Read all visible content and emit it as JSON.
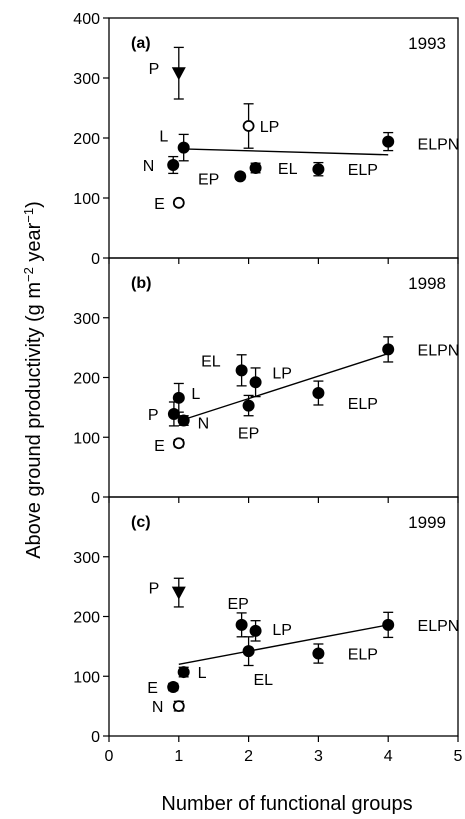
{
  "chart_data": {
    "type": "scatter",
    "xlabel": "Number of functional groups",
    "ylabel": "Above ground productivity (g m−2 year−1)",
    "xlim": [
      0,
      5
    ],
    "ylim": [
      0,
      400
    ],
    "x_ticks": [
      "0",
      "1",
      "2",
      "3",
      "4",
      "5"
    ],
    "y_ticks_top": [
      "0",
      "100",
      "200",
      "300",
      "400"
    ],
    "y_ticks_other": [
      "0",
      "100",
      "200",
      "300"
    ],
    "panels": [
      {
        "tag": "(a)",
        "year": "1993",
        "trend": [
          [
            1,
            182
          ],
          [
            4,
            172
          ]
        ],
        "points": [
          {
            "label": "P",
            "x": 1.0,
            "y": 308,
            "err": 43,
            "marker": "triangle",
            "lx": -0.28,
            "ly": 5
          },
          {
            "label": "LP",
            "x": 2.0,
            "y": 220,
            "err": 37,
            "marker": "open",
            "lx": 0.16,
            "ly": 0
          },
          {
            "label": "ELPN",
            "x": 4.0,
            "y": 194,
            "err": 15,
            "marker": "filled",
            "lx": 0.42,
            "ly": -2
          },
          {
            "label": "L",
            "x": 1.07,
            "y": 184,
            "err": 22,
            "marker": "filled",
            "lx": -0.22,
            "ly": 12
          },
          {
            "label": "N",
            "x": 0.92,
            "y": 155,
            "err": 14,
            "marker": "filled",
            "lx": -0.27,
            "ly": 0
          },
          {
            "label": "EL",
            "x": 2.1,
            "y": 150,
            "err": 8,
            "marker": "filled",
            "lx": 0.32,
            "ly": 0
          },
          {
            "label": "ELP",
            "x": 3.0,
            "y": 148,
            "err": 11,
            "marker": "filled",
            "lx": 0.42,
            "ly": 0
          },
          {
            "label": "EP",
            "x": 1.88,
            "y": 136,
            "err": 5,
            "marker": "filled",
            "lx": -0.3,
            "ly": -2
          },
          {
            "label": "E",
            "x": 1.0,
            "y": 92,
            "err": 5,
            "marker": "open",
            "lx": -0.2,
            "ly": 0
          }
        ]
      },
      {
        "tag": "(b)",
        "year": "1998",
        "trend": [
          [
            1,
            127
          ],
          [
            4,
            240
          ]
        ],
        "points": [
          {
            "label": "ELPN",
            "x": 4.0,
            "y": 247,
            "err": 21,
            "marker": "filled",
            "lx": 0.42,
            "ly": 0
          },
          {
            "label": "EL",
            "x": 1.9,
            "y": 212,
            "err": 26,
            "marker": "filled",
            "lx": -0.3,
            "ly": 10
          },
          {
            "label": "LP",
            "x": 2.1,
            "y": 192,
            "err": 24,
            "marker": "filled",
            "lx": 0.24,
            "ly": 10
          },
          {
            "label": "L",
            "x": 1.0,
            "y": 166,
            "err": 24,
            "marker": "filled",
            "lx": 0.18,
            "ly": 5
          },
          {
            "label": "ELP",
            "x": 3.0,
            "y": 174,
            "err": 20,
            "marker": "filled",
            "lx": 0.42,
            "ly": -10
          },
          {
            "label": "EP",
            "x": 2.0,
            "y": 153,
            "err": 17,
            "marker": "filled",
            "lx": 0.0,
            "ly": -27
          },
          {
            "label": "P",
            "x": 0.93,
            "y": 139,
            "err": 20,
            "marker": "filled",
            "lx": -0.22,
            "ly": 0
          },
          {
            "label": "N",
            "x": 1.07,
            "y": 128,
            "err": 8,
            "marker": "filled",
            "lx": 0.2,
            "ly": -2
          },
          {
            "label": "E",
            "x": 1.0,
            "y": 90,
            "err": 6,
            "marker": "open",
            "lx": -0.2,
            "ly": -2
          }
        ]
      },
      {
        "tag": "(c)",
        "year": "1999",
        "trend": [
          [
            1,
            120
          ],
          [
            4,
            186
          ]
        ],
        "points": [
          {
            "label": "P",
            "x": 1.0,
            "y": 240,
            "err": 24,
            "marker": "triangle",
            "lx": -0.28,
            "ly": 5
          },
          {
            "label": "EP",
            "x": 1.9,
            "y": 186,
            "err": 20,
            "marker": "filled",
            "lx": -0.05,
            "ly": 22
          },
          {
            "label": "LP",
            "x": 2.1,
            "y": 176,
            "err": 17,
            "marker": "filled",
            "lx": 0.24,
            "ly": 2
          },
          {
            "label": "ELPN",
            "x": 4.0,
            "y": 186,
            "err": 21,
            "marker": "filled",
            "lx": 0.42,
            "ly": 0
          },
          {
            "label": "EL",
            "x": 2.0,
            "y": 142,
            "err": 24,
            "marker": "filled",
            "lx": 0.07,
            "ly": -28
          },
          {
            "label": "ELP",
            "x": 3.0,
            "y": 138,
            "err": 16,
            "marker": "filled",
            "lx": 0.42,
            "ly": 0
          },
          {
            "label": "L",
            "x": 1.07,
            "y": 107,
            "err": 8,
            "marker": "filled",
            "lx": 0.2,
            "ly": 0
          },
          {
            "label": "E",
            "x": 0.92,
            "y": 82,
            "err": 6,
            "marker": "filled",
            "lx": -0.22,
            "ly": 0
          },
          {
            "label": "N",
            "x": 1.0,
            "y": 50,
            "err": 8,
            "marker": "open",
            "lx": -0.22,
            "ly": 0
          }
        ]
      }
    ]
  }
}
